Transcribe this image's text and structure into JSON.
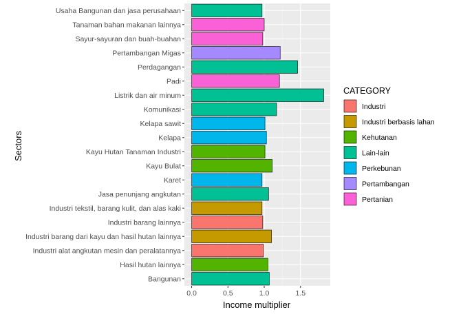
{
  "chart_data": {
    "type": "bar",
    "orientation": "horizontal",
    "xlabel": "Income multiplier",
    "ylabel": "Sectors",
    "xlim": [
      -0.1,
      1.91
    ],
    "xticks": [
      0.0,
      0.5,
      1.0,
      1.5
    ],
    "xtick_labels": [
      "0.0",
      "0.5",
      "1.0",
      "1.5"
    ],
    "grid": true,
    "legend": {
      "title": "CATEGORY",
      "placement": "right",
      "entries": [
        {
          "name": "Industri",
          "color": "#F8766D"
        },
        {
          "name": "Industri berbasis lahan",
          "color": "#C49A00"
        },
        {
          "name": "Kehutanan",
          "color": "#53B400"
        },
        {
          "name": "Lain-lain",
          "color": "#00C094"
        },
        {
          "name": "Perkebunan",
          "color": "#00B6EB"
        },
        {
          "name": "Pertambangan",
          "color": "#A58AFF"
        },
        {
          "name": "Pertanian",
          "color": "#FB61D7"
        }
      ]
    },
    "bars": [
      {
        "sector": "Usaha Bangunan dan jasa perusahaan",
        "value": 0.97,
        "category": "Lain-lain"
      },
      {
        "sector": "Tanaman bahan makanan lainnya",
        "value": 1.0,
        "category": "Pertanian"
      },
      {
        "sector": "Sayur-sayuran dan buah-buahan",
        "value": 0.98,
        "category": "Pertanian"
      },
      {
        "sector": "Pertambangan Migas",
        "value": 1.22,
        "category": "Pertambangan"
      },
      {
        "sector": "Perdagangan",
        "value": 1.46,
        "category": "Lain-lain"
      },
      {
        "sector": "Padi",
        "value": 1.21,
        "category": "Pertanian"
      },
      {
        "sector": "Listrik dan air minum",
        "value": 1.82,
        "category": "Lain-lain"
      },
      {
        "sector": "Komunikasi",
        "value": 1.17,
        "category": "Lain-lain"
      },
      {
        "sector": "Kelapa sawit",
        "value": 1.01,
        "category": "Perkebunan"
      },
      {
        "sector": "Kelapa",
        "value": 1.03,
        "category": "Perkebunan"
      },
      {
        "sector": "Kayu Hutan Tanaman Industri",
        "value": 1.01,
        "category": "Kehutanan"
      },
      {
        "sector": "Kayu Bulat",
        "value": 1.11,
        "category": "Kehutanan"
      },
      {
        "sector": "Karet",
        "value": 0.97,
        "category": "Perkebunan"
      },
      {
        "sector": "Jasa penunjang angkutan",
        "value": 1.06,
        "category": "Lain-lain"
      },
      {
        "sector": "Industri tekstil, barang kulit, dan alas kaki",
        "value": 0.97,
        "category": "Industri berbasis lahan"
      },
      {
        "sector": "Industri barang lainnya",
        "value": 0.98,
        "category": "Industri"
      },
      {
        "sector": "Industri barang dari kayu dan hasil hutan lainnya",
        "value": 1.1,
        "category": "Industri berbasis lahan"
      },
      {
        "sector": "Industri alat angkutan mesin dan peralatannya",
        "value": 0.99,
        "category": "Industri"
      },
      {
        "sector": "Hasil hutan lainnya",
        "value": 1.05,
        "category": "Kehutanan"
      },
      {
        "sector": "Bangunan",
        "value": 1.07,
        "category": "Lain-lain"
      }
    ]
  }
}
